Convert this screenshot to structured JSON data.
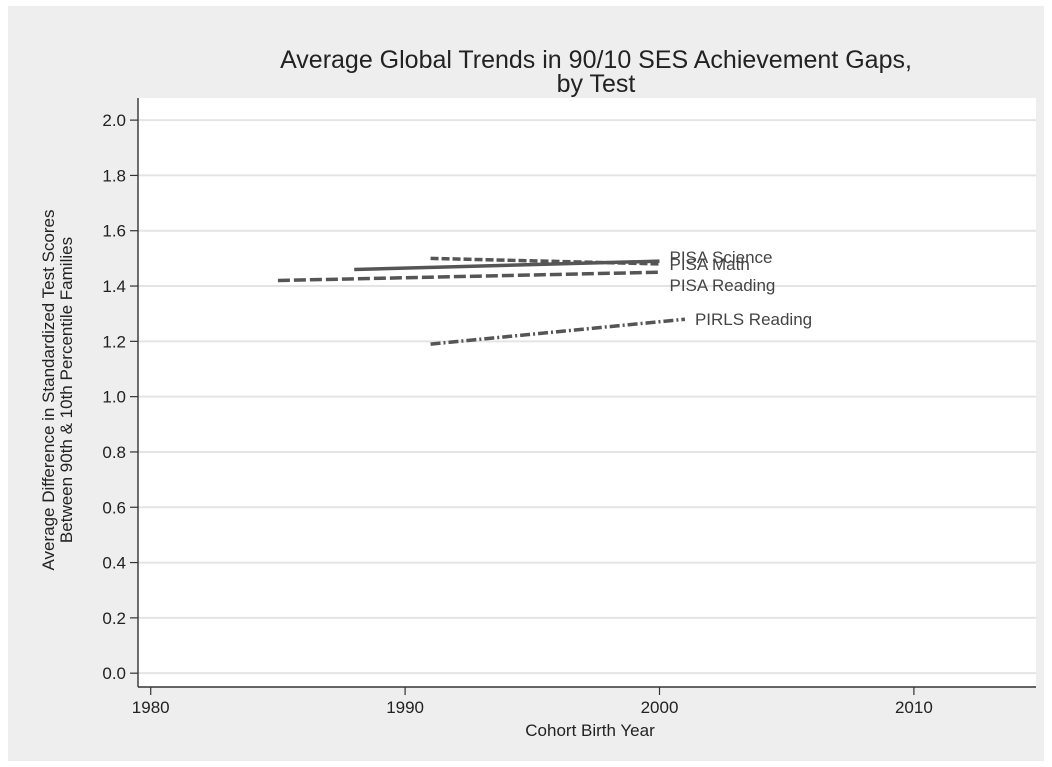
{
  "chart_data": {
    "type": "line",
    "title": "Average Global Trends in 90/10 SES Achievement Gaps,",
    "subtitle": "by Test",
    "xlabel": "Cohort Birth Year",
    "ylabel": "Average Difference in Standardized Test Scores",
    "ylabel2": "Between 90th & 10th Percentile Families",
    "xlim": [
      1979.5,
      2014.8
    ],
    "ylim": [
      -0.05,
      2.08
    ],
    "xticks": [
      1980,
      1990,
      2000,
      2010
    ],
    "yticks": [
      "0.0",
      "0.2",
      "0.4",
      "0.6",
      "0.8",
      "1.0",
      "1.2",
      "1.4",
      "1.6",
      "1.8",
      "2.0"
    ],
    "grid": true,
    "legend": "direct labels at right end of lines",
    "series": [
      {
        "name": "PISA Science",
        "x": [
          1991,
          2000
        ],
        "values": [
          1.5,
          1.48
        ],
        "dash": "8 3",
        "color": "#555555"
      },
      {
        "name": "PISA Math",
        "x": [
          1988,
          2000
        ],
        "values": [
          1.46,
          1.49
        ],
        "dash": "",
        "color": "#555555"
      },
      {
        "name": "PISA Reading",
        "x": [
          1985,
          2000
        ],
        "values": [
          1.42,
          1.45
        ],
        "dash": "12 4",
        "color": "#555555"
      },
      {
        "name": "PIRLS Reading",
        "x": [
          1991,
          2001
        ],
        "values": [
          1.19,
          1.28
        ],
        "dash": "10 3 2 3",
        "color": "#555555"
      }
    ]
  }
}
